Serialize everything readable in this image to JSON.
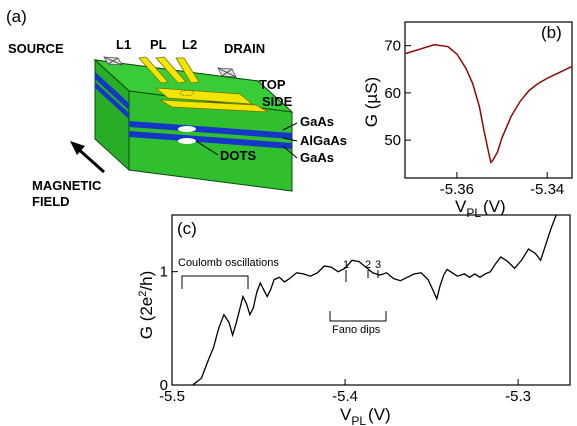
{
  "panel_a": {
    "label": "(a)",
    "labels": {
      "source": "SOURCE",
      "l1": "L1",
      "pl": "PL",
      "l2": "L2",
      "drain": "DRAIN",
      "top": "TOP",
      "side": "SIDE",
      "gaas_top": "GaAs",
      "algaas": "AlGaAs",
      "gaas_bottom": "GaAs",
      "dots": "DOTS",
      "magnetic": "MAGNETIC",
      "field": "FIELD"
    },
    "colors": {
      "substrate": "#2fbf2f",
      "gate": "#f2e600",
      "layer": "#1536c8",
      "contact": "#d8d8d8"
    }
  },
  "chart_data": [
    {
      "panel": "(b)",
      "type": "line",
      "title": "",
      "xlabel": "V",
      "xlabel_sub": "PL",
      "xlabel_unit": "(V)",
      "ylabel": "G (µS)",
      "xlim": [
        -5.3715,
        -5.3345
      ],
      "ylim": [
        42,
        75
      ],
      "xticks": [
        -5.36,
        -5.34
      ],
      "xtick_labels": [
        "-5.36",
        "-5.34"
      ],
      "yticks": [
        50,
        60,
        70
      ],
      "ytick_labels": [
        "50",
        "60",
        "70"
      ],
      "grid": false,
      "series": [
        {
          "color": "#cc1f1f",
          "x": [
            -5.3715,
            -5.368,
            -5.365,
            -5.362,
            -5.36,
            -5.358,
            -5.3565,
            -5.355,
            -5.354,
            -5.353,
            -5.3525,
            -5.352,
            -5.351,
            -5.35,
            -5.348,
            -5.346,
            -5.344,
            -5.342,
            -5.34,
            -5.338,
            -5.336,
            -5.3345
          ],
          "y": [
            68.3,
            69.3,
            70.2,
            69.8,
            68.2,
            65.2,
            62.0,
            57.0,
            52.0,
            47.5,
            45.3,
            45.8,
            47.5,
            50.5,
            55.0,
            58.2,
            60.5,
            62.0,
            63.1,
            64.0,
            64.9,
            65.6
          ]
        }
      ]
    },
    {
      "panel": "(c)",
      "type": "line",
      "title": "",
      "xlabel": "V",
      "xlabel_sub": "PL",
      "xlabel_unit": "(V)",
      "ylabel": "G (2e²/h)",
      "xlim": [
        -5.5,
        -5.27
      ],
      "ylim": [
        0,
        1.5
      ],
      "xticks": [
        -5.5,
        -5.4,
        -5.3
      ],
      "xtick_labels": [
        "-5.5",
        "-5.4",
        "-5.3"
      ],
      "yticks": [
        0,
        1
      ],
      "ytick_labels": [
        "0",
        "1"
      ],
      "grid": false,
      "annotations": {
        "coulomb": "Coulomb oscillations",
        "fano": "Fano dips",
        "dip1": "1",
        "dip2": "2",
        "dip3": "3"
      },
      "series": [
        {
          "color": "#000000",
          "x": [
            -5.488,
            -5.483,
            -5.479,
            -5.476,
            -5.473,
            -5.47,
            -5.467,
            -5.465,
            -5.463,
            -5.461,
            -5.459,
            -5.457,
            -5.455,
            -5.453,
            -5.451,
            -5.449,
            -5.447,
            -5.445,
            -5.443,
            -5.441,
            -5.438,
            -5.435,
            -5.432,
            -5.428,
            -5.424,
            -5.42,
            -5.416,
            -5.412,
            -5.408,
            -5.404,
            -5.4,
            -5.396,
            -5.392,
            -5.388,
            -5.384,
            -5.38,
            -5.376,
            -5.372,
            -5.368,
            -5.364,
            -5.36,
            -5.356,
            -5.352,
            -5.349,
            -5.347,
            -5.345,
            -5.343,
            -5.341,
            -5.338,
            -5.335,
            -5.331,
            -5.328,
            -5.325,
            -5.322,
            -5.319,
            -5.316,
            -5.313,
            -5.31,
            -5.306,
            -5.302,
            -5.298,
            -5.294,
            -5.29,
            -5.287,
            -5.284,
            -5.281,
            -5.278
          ],
          "y": [
            0.0,
            0.06,
            0.22,
            0.33,
            0.5,
            0.62,
            0.55,
            0.44,
            0.54,
            0.66,
            0.78,
            0.72,
            0.62,
            0.68,
            0.82,
            0.9,
            0.84,
            0.78,
            0.84,
            0.93,
            0.95,
            0.91,
            0.94,
            0.99,
            0.98,
            0.96,
            0.99,
            1.05,
            1.04,
            1.0,
            1.03,
            1.1,
            1.09,
            1.04,
            0.99,
            0.97,
            0.99,
            0.94,
            0.92,
            0.95,
            0.98,
            0.99,
            0.93,
            0.83,
            0.76,
            0.88,
            0.97,
            1.02,
            0.99,
            0.96,
            0.98,
            0.95,
            0.98,
            0.95,
            0.98,
            1.0,
            1.07,
            1.13,
            1.09,
            1.03,
            1.1,
            1.2,
            1.16,
            1.1,
            1.24,
            1.38,
            1.5
          ]
        }
      ]
    }
  ]
}
